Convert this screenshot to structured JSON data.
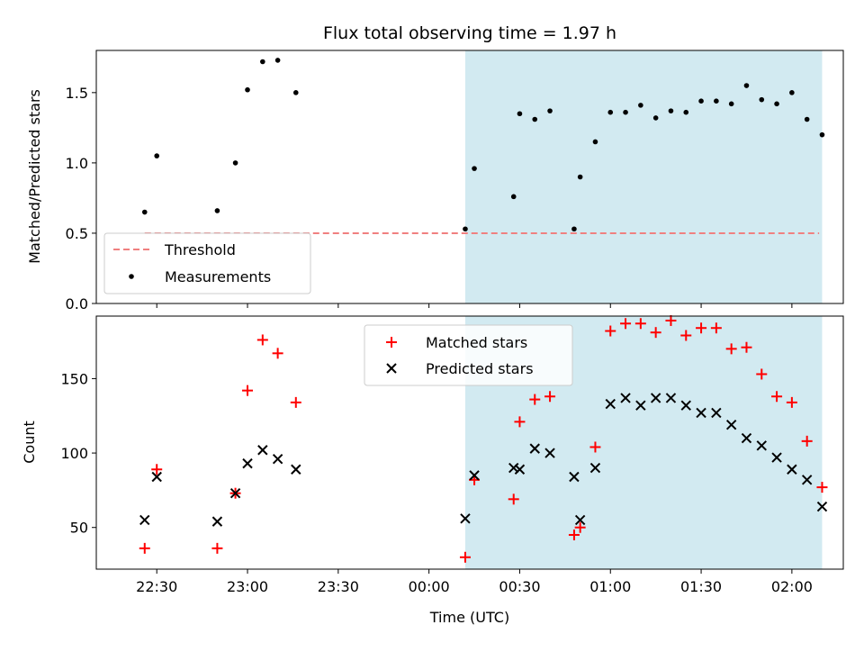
{
  "chart_data": [
    {
      "type": "scatter",
      "title": "Flux total observing time = 1.97 h",
      "xlabel": "",
      "ylabel": "Matched/Predicted stars",
      "ylim": [
        0,
        1.8
      ],
      "yticks": [
        "0.0",
        "0.5",
        "1.0",
        "1.5"
      ],
      "threshold": {
        "name": "Threshold",
        "y": 0.5,
        "x_start": "22:26",
        "x_end": "02:09",
        "color": "#f08080"
      },
      "shaded_region": {
        "x_start": "00:12",
        "x_end": "02:10",
        "color": "#add8e6"
      },
      "series": [
        {
          "name": "Measurements",
          "color": "#000000",
          "x": [
            "22:26",
            "22:30",
            "22:50",
            "22:56",
            "23:00",
            "23:05",
            "23:10",
            "23:16",
            "00:12",
            "00:15",
            "00:28",
            "00:30",
            "00:35",
            "00:40",
            "00:48",
            "00:50",
            "00:55",
            "01:00",
            "01:05",
            "01:10",
            "01:15",
            "01:20",
            "01:25",
            "01:30",
            "01:35",
            "01:40",
            "01:45",
            "01:50",
            "01:55",
            "02:00",
            "02:05",
            "02:10"
          ],
          "values": [
            0.65,
            1.05,
            0.66,
            1.0,
            1.52,
            1.72,
            1.73,
            1.5,
            0.53,
            0.96,
            0.76,
            1.35,
            1.31,
            1.37,
            0.53,
            0.9,
            1.15,
            1.36,
            1.36,
            1.41,
            1.32,
            1.37,
            1.36,
            1.44,
            1.44,
            1.42,
            1.55,
            1.45,
            1.42,
            1.5,
            1.31,
            1.2
          ]
        }
      ],
      "legend": {
        "position": "lower-left",
        "entries": [
          "Threshold",
          "Measurements"
        ]
      }
    },
    {
      "type": "scatter",
      "title": "",
      "xlabel": "Time (UTC)",
      "ylabel": "Count",
      "ylim": [
        22,
        192
      ],
      "yticks": [
        "50",
        "100",
        "150"
      ],
      "xticks": [
        "22:30",
        "23:00",
        "23:30",
        "00:00",
        "00:30",
        "01:00",
        "01:30",
        "02:00"
      ],
      "shaded_region": {
        "x_start": "00:12",
        "x_end": "02:10",
        "color": "#add8e6"
      },
      "series": [
        {
          "name": "Matched stars",
          "marker": "+",
          "color": "#ff0000",
          "x": [
            "22:26",
            "22:30",
            "22:50",
            "22:56",
            "23:00",
            "23:05",
            "23:10",
            "23:16",
            "00:12",
            "00:15",
            "00:28",
            "00:30",
            "00:35",
            "00:40",
            "00:48",
            "00:50",
            "00:55",
            "01:00",
            "01:05",
            "01:10",
            "01:15",
            "01:20",
            "01:25",
            "01:30",
            "01:35",
            "01:40",
            "01:45",
            "01:50",
            "01:55",
            "02:00",
            "02:05",
            "02:10"
          ],
          "values": [
            36,
            89,
            36,
            73,
            142,
            176,
            167,
            134,
            30,
            82,
            69,
            121,
            136,
            138,
            45,
            50,
            104,
            182,
            187,
            187,
            181,
            189,
            179,
            184,
            184,
            170,
            171,
            153,
            138,
            134,
            108,
            77
          ]
        },
        {
          "name": "Predicted stars",
          "marker": "x",
          "color": "#000000",
          "x": [
            "22:26",
            "22:30",
            "22:50",
            "22:56",
            "23:00",
            "23:05",
            "23:10",
            "23:16",
            "00:12",
            "00:15",
            "00:28",
            "00:30",
            "00:35",
            "00:40",
            "00:48",
            "00:50",
            "00:55",
            "01:00",
            "01:05",
            "01:10",
            "01:15",
            "01:20",
            "01:25",
            "01:30",
            "01:35",
            "01:40",
            "01:45",
            "01:50",
            "01:55",
            "02:00",
            "02:05",
            "02:10"
          ],
          "values": [
            55,
            84,
            54,
            73,
            93,
            102,
            96,
            89,
            56,
            85,
            90,
            89,
            103,
            100,
            84,
            55,
            90,
            133,
            137,
            132,
            137,
            137,
            132,
            127,
            127,
            119,
            110,
            105,
            97,
            89,
            82,
            64
          ]
        }
      ],
      "legend": {
        "position": "upper-center",
        "entries": [
          "Matched stars",
          "Predicted stars"
        ]
      }
    }
  ]
}
